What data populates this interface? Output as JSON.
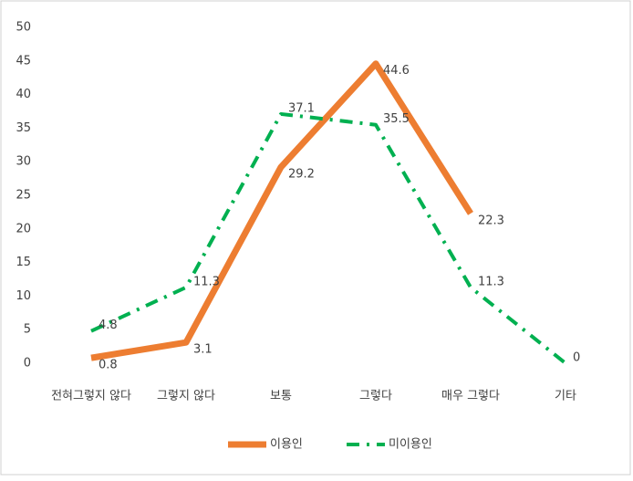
{
  "chart_data": {
    "type": "line",
    "categories": [
      "전혀그렇지 않다",
      "그렇지 않다",
      "보통",
      "그렇다",
      "매우 그렇다",
      "기타"
    ],
    "series": [
      {
        "name": "이용인",
        "color": "#ed7d31",
        "values": [
          0.8,
          3.1,
          29.2,
          44.6,
          22.3,
          null
        ]
      },
      {
        "name": "미이용인",
        "color": "#00b050",
        "values": [
          4.8,
          11.3,
          37.1,
          35.5,
          11.3,
          0
        ]
      }
    ],
    "ylim": [
      0,
      50
    ],
    "yticks": [
      0,
      5,
      10,
      15,
      20,
      25,
      30,
      35,
      40,
      45,
      50
    ],
    "grid": false,
    "legend": "bottom"
  }
}
